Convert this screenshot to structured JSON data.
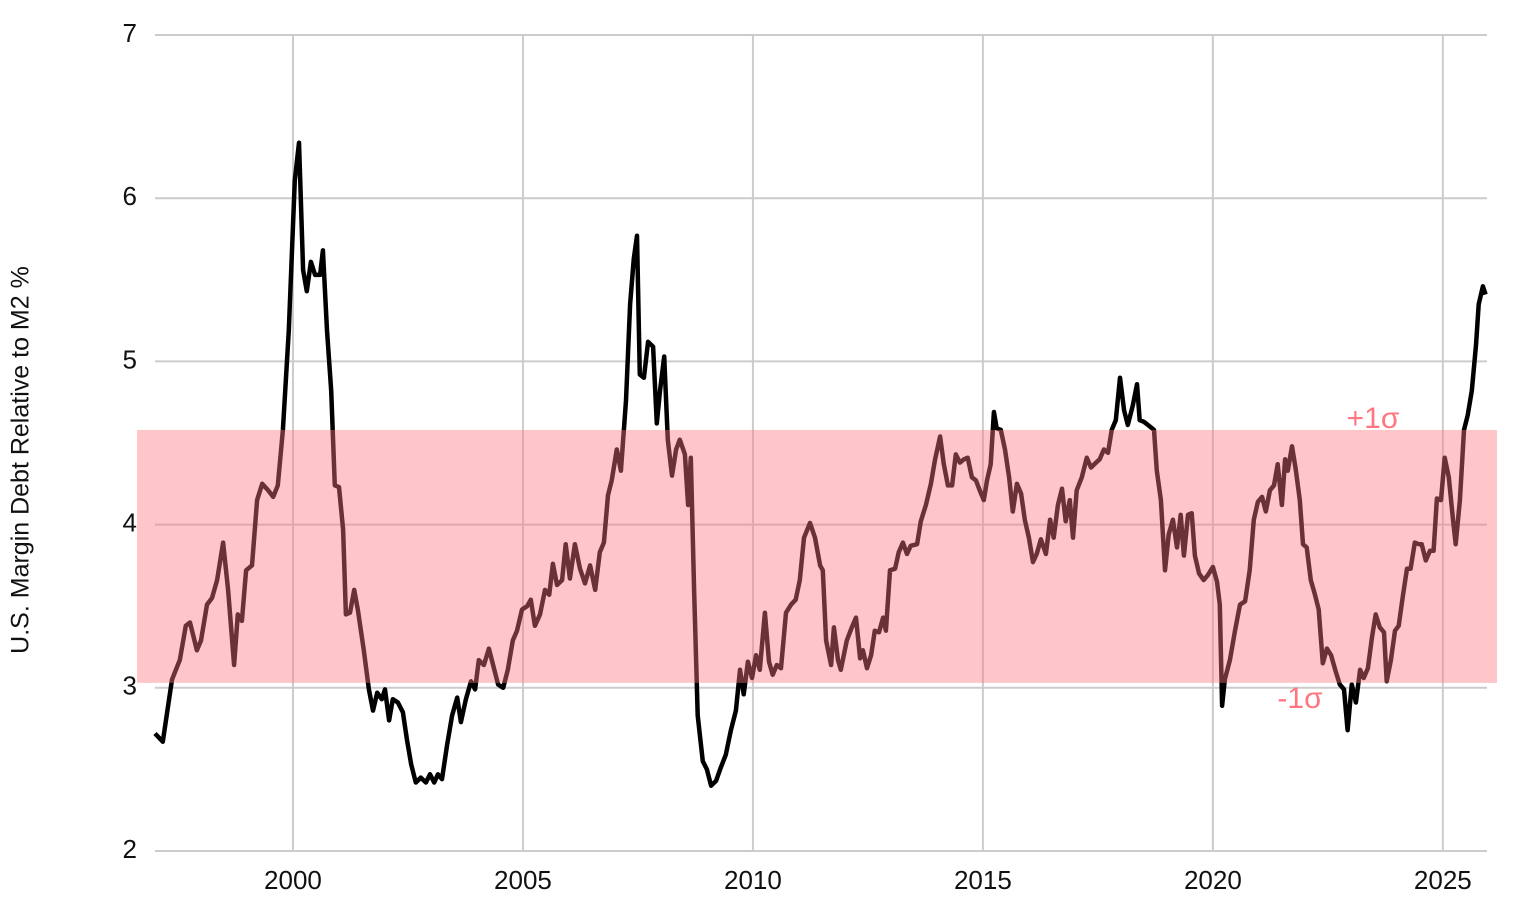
{
  "chart_data": {
    "type": "line",
    "y_label": "U.S. Margin Debt Relative to M2 %",
    "color": "#000000",
    "grid": true,
    "xlim": [
      1997.0,
      2025.96
    ],
    "ylim": [
      2,
      7
    ],
    "xticks": [
      2000,
      2005,
      2010,
      2015,
      2020,
      2025
    ],
    "yticks": [
      2,
      3,
      4,
      5,
      6,
      7
    ],
    "band": {
      "lower": 3.03,
      "upper": 4.58,
      "lower_label": "-1σ",
      "upper_label": "+1σ",
      "color": "#ff7680"
    },
    "x": [
      1997.0,
      1997.17,
      1997.37,
      1997.54,
      1997.67,
      1997.76,
      1997.91,
      1998.0,
      1998.13,
      1998.24,
      1998.35,
      1998.48,
      1998.59,
      1998.72,
      1998.8,
      1998.89,
      1998.98,
      1999.11,
      1999.22,
      1999.33,
      1999.46,
      1999.57,
      1999.67,
      1999.78,
      1999.91,
      2000.04,
      2000.13,
      2000.22,
      2000.3,
      2000.39,
      2000.48,
      2000.59,
      2000.65,
      2000.74,
      2000.83,
      2000.91,
      2001.0,
      2001.09,
      2001.15,
      2001.24,
      2001.33,
      2001.41,
      2001.54,
      2001.65,
      2001.74,
      2001.83,
      2001.93,
      2002.0,
      2002.09,
      2002.17,
      2002.28,
      2002.39,
      2002.48,
      2002.57,
      2002.67,
      2002.78,
      2002.89,
      2002.98,
      2003.07,
      2003.15,
      2003.24,
      2003.35,
      2003.46,
      2003.57,
      2003.65,
      2003.76,
      2003.87,
      2003.96,
      2004.04,
      2004.15,
      2004.26,
      2004.35,
      2004.46,
      2004.57,
      2004.67,
      2004.78,
      2004.87,
      2004.98,
      2005.09,
      2005.17,
      2005.26,
      2005.37,
      2005.48,
      2005.57,
      2005.65,
      2005.74,
      2005.85,
      2005.93,
      2006.02,
      2006.13,
      2006.24,
      2006.35,
      2006.46,
      2006.57,
      2006.67,
      2006.76,
      2006.85,
      2006.93,
      2007.04,
      2007.13,
      2007.24,
      2007.33,
      2007.41,
      2007.48,
      2007.54,
      2007.63,
      2007.72,
      2007.83,
      2007.91,
      2007.98,
      2008.07,
      2008.15,
      2008.24,
      2008.33,
      2008.41,
      2008.52,
      2008.59,
      2008.65,
      2008.72,
      2008.8,
      2008.91,
      2009.0,
      2009.09,
      2009.2,
      2009.3,
      2009.41,
      2009.52,
      2009.63,
      2009.72,
      2009.8,
      2009.89,
      2009.98,
      2010.07,
      2010.15,
      2010.26,
      2010.35,
      2010.43,
      2010.52,
      2010.61,
      2010.72,
      2010.83,
      2010.93,
      2011.02,
      2011.11,
      2011.24,
      2011.35,
      2011.46,
      2011.52,
      2011.59,
      2011.7,
      2011.76,
      2011.85,
      2011.91,
      2012.04,
      2012.15,
      2012.24,
      2012.33,
      2012.39,
      2012.48,
      2012.57,
      2012.65,
      2012.74,
      2012.83,
      2012.89,
      2012.98,
      2013.09,
      2013.17,
      2013.26,
      2013.35,
      2013.43,
      2013.57,
      2013.65,
      2013.76,
      2013.87,
      2013.96,
      2014.07,
      2014.15,
      2014.24,
      2014.33,
      2014.41,
      2014.5,
      2014.59,
      2014.67,
      2014.76,
      2014.85,
      2014.93,
      2015.02,
      2015.09,
      2015.17,
      2015.24,
      2015.3,
      2015.39,
      2015.48,
      2015.57,
      2015.65,
      2015.74,
      2015.83,
      2015.91,
      2016.0,
      2016.09,
      2016.17,
      2016.26,
      2016.37,
      2016.46,
      2016.54,
      2016.63,
      2016.72,
      2016.8,
      2016.89,
      2016.96,
      2017.04,
      2017.15,
      2017.26,
      2017.35,
      2017.46,
      2017.54,
      2017.63,
      2017.72,
      2017.8,
      2017.89,
      2017.98,
      2018.07,
      2018.15,
      2018.26,
      2018.35,
      2018.41,
      2018.5,
      2018.59,
      2018.72,
      2018.78,
      2018.87,
      2018.96,
      2019.04,
      2019.13,
      2019.22,
      2019.3,
      2019.37,
      2019.46,
      2019.54,
      2019.61,
      2019.7,
      2019.8,
      2019.89,
      2020.0,
      2020.09,
      2020.15,
      2020.2,
      2020.26,
      2020.37,
      2020.48,
      2020.59,
      2020.7,
      2020.8,
      2020.89,
      2020.98,
      2021.07,
      2021.15,
      2021.24,
      2021.33,
      2021.41,
      2021.5,
      2021.57,
      2021.63,
      2021.72,
      2021.8,
      2021.89,
      2021.96,
      2022.04,
      2022.13,
      2022.22,
      2022.3,
      2022.39,
      2022.48,
      2022.57,
      2022.67,
      2022.76,
      2022.85,
      2022.93,
      2023.02,
      2023.11,
      2023.2,
      2023.28,
      2023.37,
      2023.46,
      2023.54,
      2023.63,
      2023.72,
      2023.78,
      2023.87,
      2023.96,
      2024.04,
      2024.13,
      2024.22,
      2024.3,
      2024.39,
      2024.48,
      2024.54,
      2024.63,
      2024.72,
      2024.8,
      2024.87,
      2024.96,
      2025.04,
      2025.13,
      2025.22,
      2025.28,
      2025.37,
      2025.46,
      2025.54,
      2025.63,
      2025.72,
      2025.78,
      2025.87,
      2025.93
    ],
    "values": [
      2.72,
      2.67,
      3.05,
      3.17,
      3.38,
      3.4,
      3.23,
      3.29,
      3.51,
      3.55,
      3.66,
      3.89,
      3.6,
      3.14,
      3.45,
      3.41,
      3.72,
      3.75,
      4.15,
      4.25,
      4.21,
      4.17,
      4.24,
      4.58,
      5.19,
      6.11,
      6.34,
      5.56,
      5.43,
      5.61,
      5.53,
      5.53,
      5.68,
      5.19,
      4.82,
      4.24,
      4.23,
      3.97,
      3.45,
      3.46,
      3.6,
      3.48,
      3.23,
      2.99,
      2.86,
      2.97,
      2.93,
      2.99,
      2.8,
      2.93,
      2.91,
      2.85,
      2.68,
      2.53,
      2.42,
      2.45,
      2.42,
      2.47,
      2.42,
      2.47,
      2.44,
      2.65,
      2.83,
      2.94,
      2.79,
      2.93,
      3.04,
      2.99,
      3.17,
      3.14,
      3.24,
      3.14,
      3.02,
      3.0,
      3.11,
      3.29,
      3.35,
      3.48,
      3.5,
      3.54,
      3.38,
      3.45,
      3.6,
      3.57,
      3.76,
      3.63,
      3.66,
      3.88,
      3.67,
      3.88,
      3.73,
      3.64,
      3.75,
      3.6,
      3.83,
      3.89,
      4.18,
      4.27,
      4.46,
      4.33,
      4.76,
      5.35,
      5.63,
      5.77,
      4.92,
      4.9,
      5.12,
      5.09,
      4.62,
      4.82,
      5.03,
      4.52,
      4.3,
      4.46,
      4.52,
      4.43,
      4.12,
      4.41,
      3.6,
      2.83,
      2.55,
      2.5,
      2.4,
      2.43,
      2.51,
      2.59,
      2.74,
      2.86,
      3.11,
      2.96,
      3.16,
      3.06,
      3.2,
      3.11,
      3.46,
      3.16,
      3.08,
      3.14,
      3.12,
      3.46,
      3.51,
      3.54,
      3.66,
      3.92,
      4.01,
      3.92,
      3.75,
      3.72,
      3.29,
      3.14,
      3.37,
      3.17,
      3.11,
      3.29,
      3.37,
      3.43,
      3.18,
      3.23,
      3.12,
      3.2,
      3.35,
      3.34,
      3.43,
      3.35,
      3.72,
      3.73,
      3.83,
      3.89,
      3.82,
      3.87,
      3.88,
      4.02,
      4.12,
      4.25,
      4.4,
      4.54,
      4.37,
      4.24,
      4.24,
      4.43,
      4.38,
      4.4,
      4.41,
      4.29,
      4.27,
      4.21,
      4.15,
      4.27,
      4.37,
      4.69,
      4.59,
      4.58,
      4.46,
      4.29,
      4.08,
      4.25,
      4.19,
      4.03,
      3.92,
      3.77,
      3.82,
      3.91,
      3.82,
      4.03,
      3.92,
      4.12,
      4.22,
      4.02,
      4.15,
      3.92,
      4.21,
      4.29,
      4.41,
      4.35,
      4.38,
      4.4,
      4.46,
      4.44,
      4.58,
      4.64,
      4.9,
      4.7,
      4.61,
      4.73,
      4.86,
      4.64,
      4.63,
      4.61,
      4.58,
      4.33,
      4.15,
      3.72,
      3.94,
      4.03,
      3.86,
      4.06,
      3.81,
      4.06,
      4.07,
      3.81,
      3.7,
      3.66,
      3.69,
      3.74,
      3.65,
      3.51,
      2.89,
      3.05,
      3.17,
      3.35,
      3.51,
      3.53,
      3.72,
      4.03,
      4.14,
      4.17,
      4.08,
      4.21,
      4.24,
      4.37,
      4.12,
      4.4,
      4.33,
      4.48,
      4.34,
      4.15,
      3.88,
      3.86,
      3.66,
      3.57,
      3.48,
      3.15,
      3.24,
      3.2,
      3.1,
      3.02,
      2.99,
      2.74,
      3.02,
      2.91,
      3.11,
      3.06,
      3.12,
      3.31,
      3.45,
      3.37,
      3.34,
      3.04,
      3.17,
      3.35,
      3.38,
      3.56,
      3.73,
      3.73,
      3.89,
      3.88,
      3.88,
      3.78,
      3.84,
      3.84,
      4.16,
      4.15,
      4.41,
      4.29,
      4.03,
      3.88,
      4.15,
      4.58,
      4.67,
      4.82,
      5.1,
      5.35,
      5.46,
      5.41
    ]
  }
}
